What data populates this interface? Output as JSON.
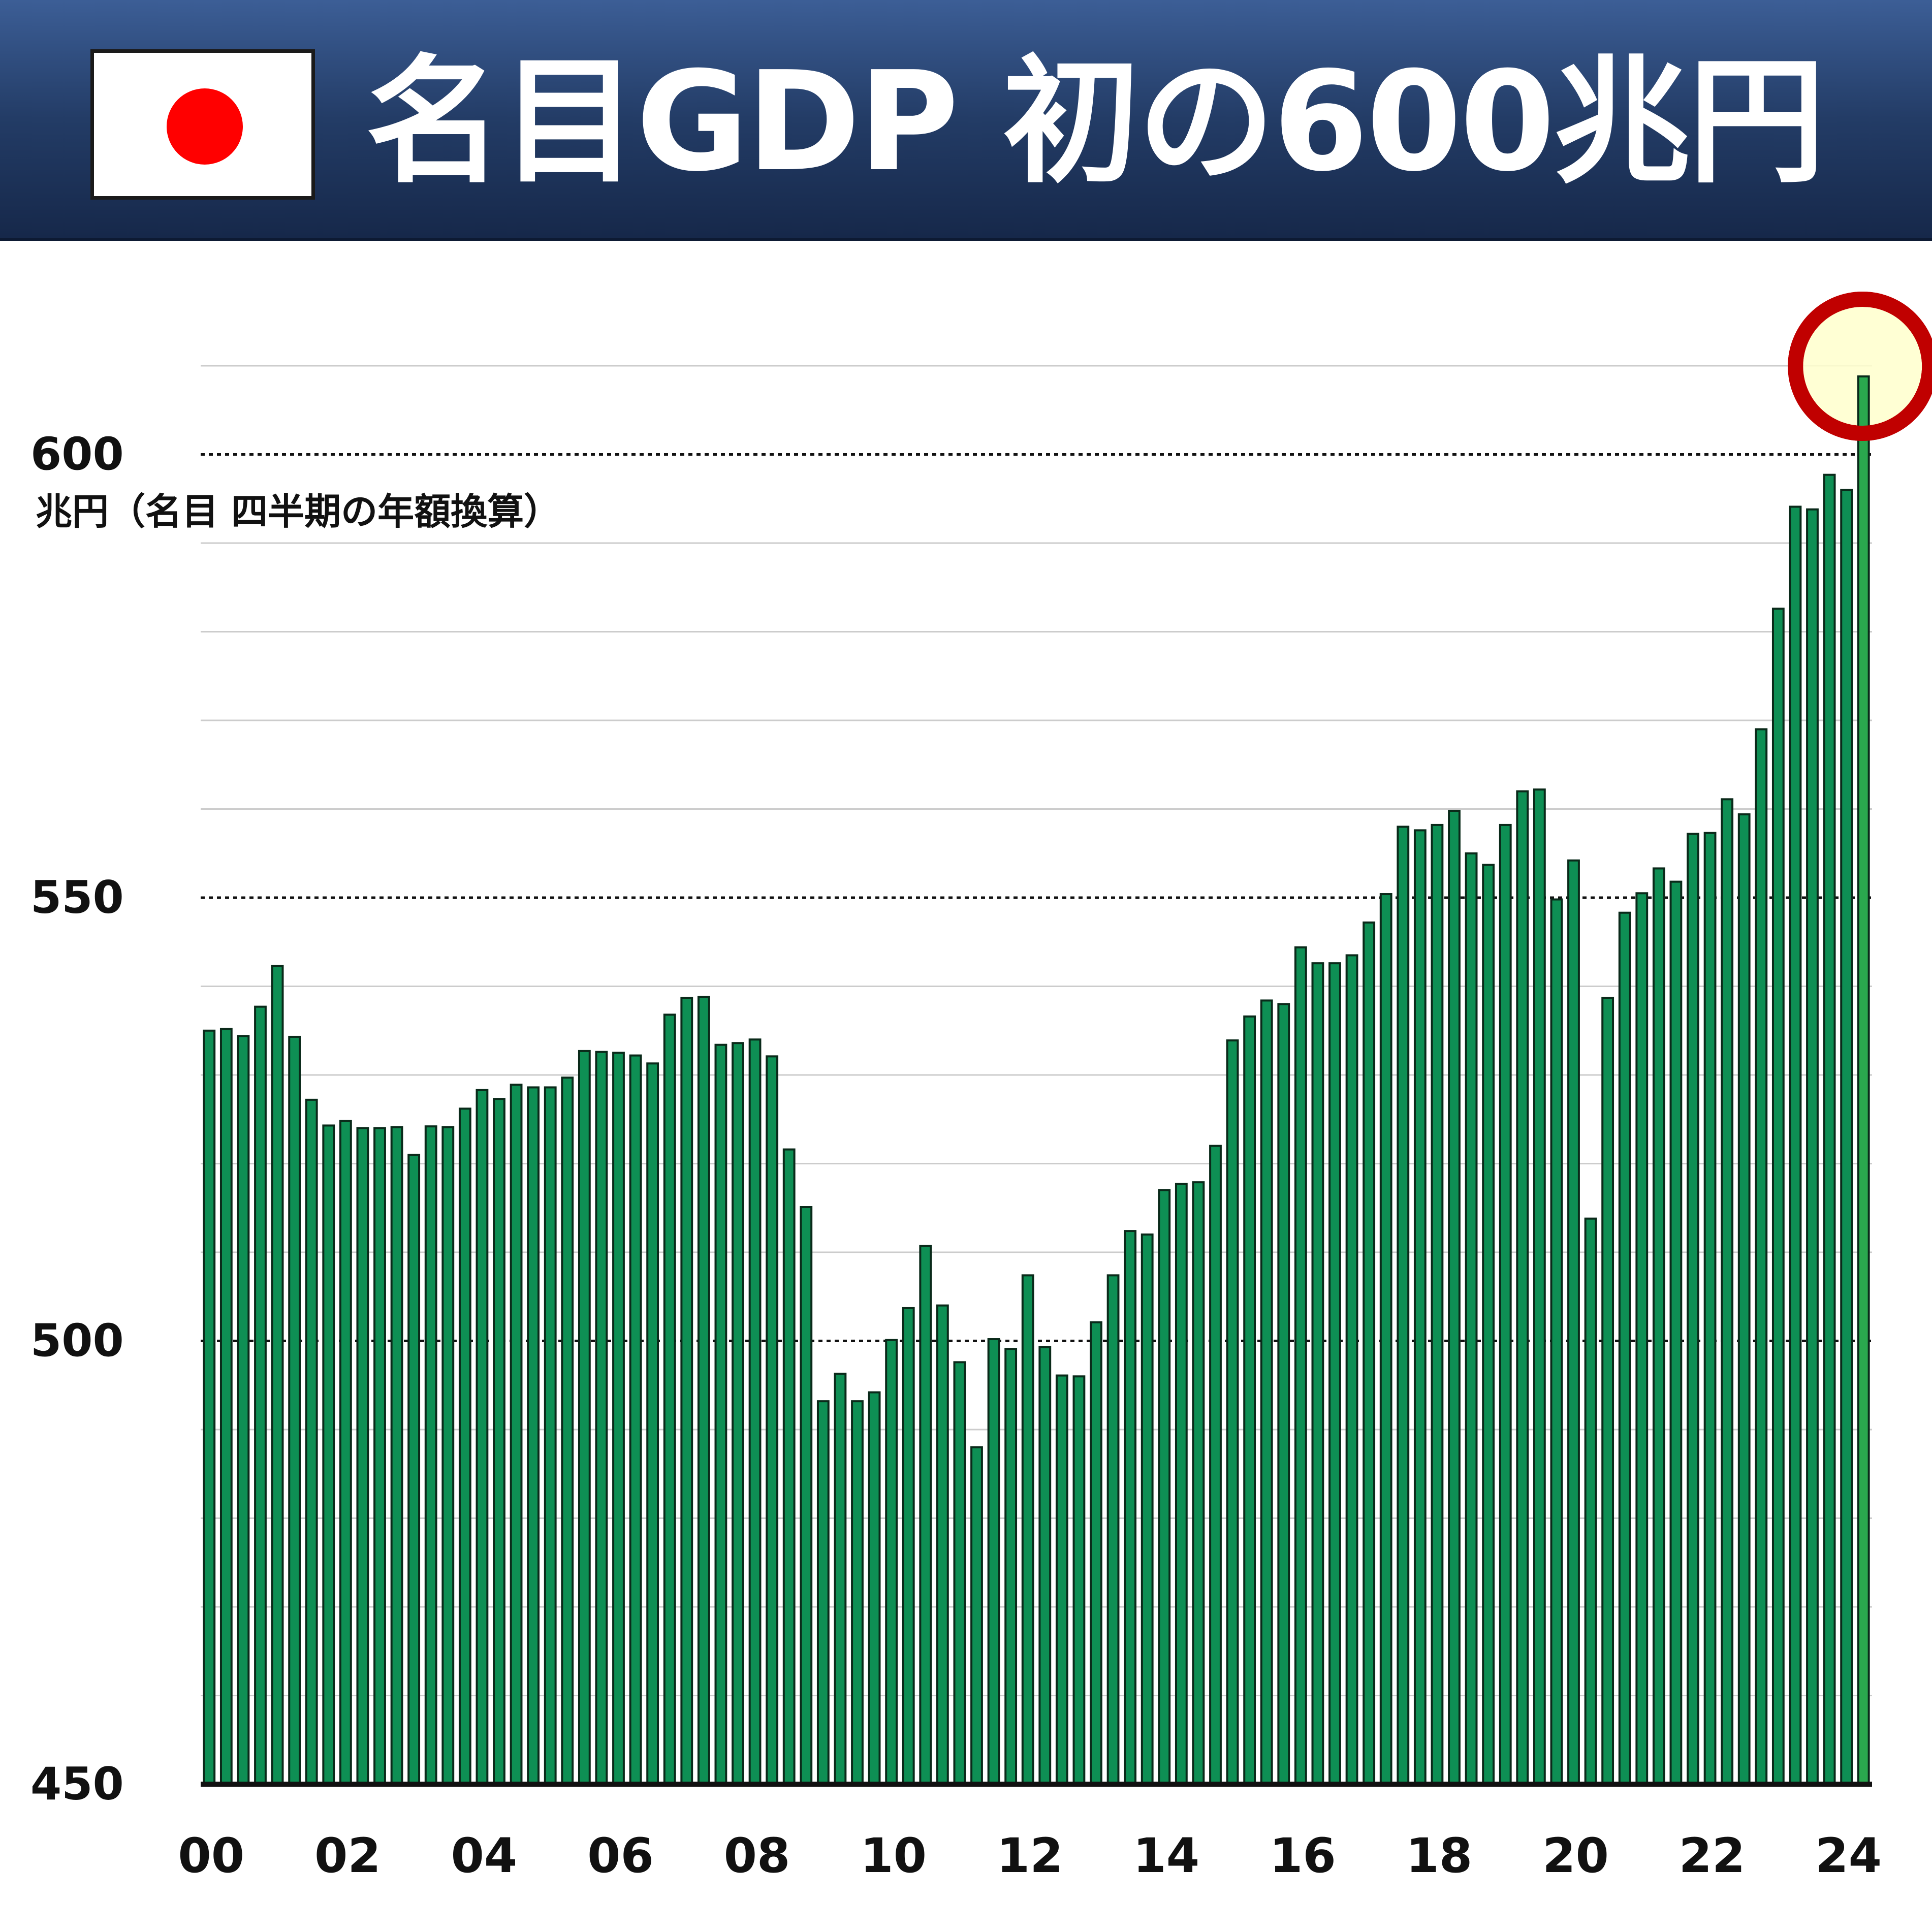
{
  "header": {
    "title": "名目GDP 初の600兆円",
    "flag_icon": "japan-flag-icon",
    "flag_colors": {
      "field": "#ffffff",
      "disc": "#ff0000"
    }
  },
  "chart_data": {
    "type": "bar",
    "title": "名目GDP 初の600兆円",
    "ylabel": "兆円（名目 四半期の年額換算）",
    "xlabel": "",
    "ylim": [
      450,
      610
    ],
    "y_ticks": [
      "450",
      "500",
      "550",
      "600"
    ],
    "y_dotted_lines": [
      500,
      550,
      600
    ],
    "x_tick_labels": [
      "00",
      "02",
      "04",
      "06",
      "08",
      "10",
      "12",
      "14",
      "16",
      "18",
      "20",
      "22",
      "24"
    ],
    "x_start_year": 2000,
    "periods_per_year": 4,
    "bar_color": "#0e8f54",
    "bar_outline": "#0a2a1a",
    "highlight_color": "#c00000",
    "highlight_fill": "#ffffcc",
    "highlight_index": 97,
    "grid": true,
    "series": [
      {
        "values": [
          535.0,
          535.2,
          534.4,
          537.7,
          542.3,
          534.3,
          527.2,
          524.3,
          524.8,
          524.0,
          524.0,
          524.1,
          521.0,
          524.2,
          524.1,
          526.2,
          528.3,
          527.3,
          528.9,
          528.6,
          528.6,
          529.7,
          532.7,
          532.6,
          532.5,
          532.2,
          531.3,
          536.8,
          538.7,
          538.8,
          533.4,
          533.6,
          534.0,
          532.1,
          521.6,
          515.1,
          493.2,
          496.3,
          493.2,
          494.2,
          500.1,
          503.7,
          510.7,
          504.0,
          497.6,
          488.0,
          500.2,
          499.1,
          507.4,
          499.3,
          496.1,
          496.0,
          502.1,
          507.4,
          512.4,
          512.0,
          517.0,
          517.7,
          517.9,
          522.0,
          533.9,
          536.6,
          538.4,
          538.0,
          544.4,
          542.6,
          542.6,
          543.5,
          547.2,
          550.4,
          558.0,
          557.6,
          558.2,
          559.8,
          555.0,
          553.7,
          558.2,
          562.0,
          562.2,
          549.8,
          554.2,
          513.8,
          538.7,
          548.3,
          550.5,
          553.3,
          551.8,
          557.2,
          557.3,
          561.1,
          559.4,
          569.0,
          582.6,
          594.1,
          593.8,
          597.7,
          596.0,
          608.8
        ]
      }
    ]
  }
}
